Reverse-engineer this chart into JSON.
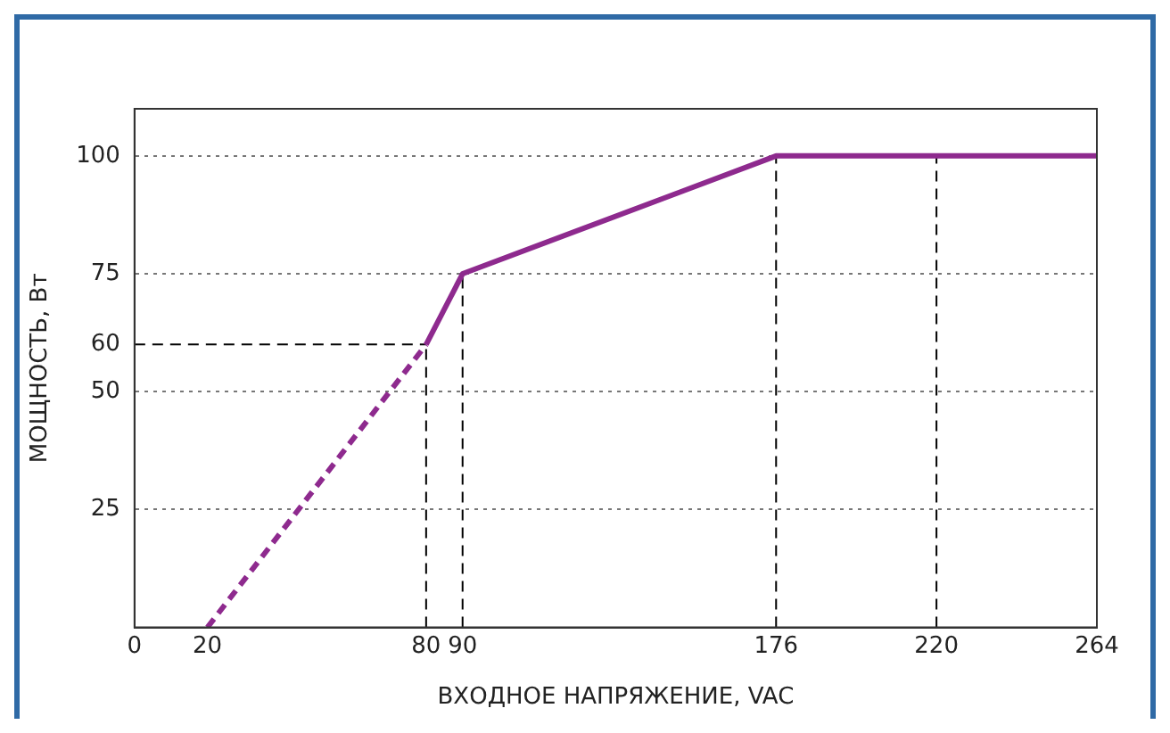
{
  "chart_data": {
    "type": "line",
    "xlabel": "ВХОДНОЕ НАПРЯЖЕНИЕ, VAC",
    "ylabel": "МОЩНОСТЬ, Вт",
    "series": [
      {
        "color": "#8e2a8e",
        "line_style": "dashed",
        "x": [
          20,
          80
        ],
        "values": [
          0,
          60
        ]
      },
      {
        "color": "#8e2a8e",
        "line_style": "solid",
        "x": [
          80,
          90,
          176,
          264
        ],
        "values": [
          60,
          75,
          100,
          100
        ]
      }
    ],
    "xlim": [
      0,
      264
    ],
    "xticks": [
      0,
      20,
      80,
      90,
      176,
      220,
      264
    ],
    "ylim": [
      0,
      110
    ],
    "yticks": [
      25,
      50,
      60,
      75,
      100
    ],
    "grid": "y",
    "marker": "none",
    "legend": false,
    "ref_lines": [
      {
        "axis": "x",
        "value": 80,
        "color": "#000000",
        "line_style": "dashed"
      },
      {
        "axis": "x",
        "value": 90,
        "color": "#000000",
        "line_style": "dashed"
      },
      {
        "axis": "x",
        "value": 176,
        "color": "#000000",
        "line_style": "dashed"
      },
      {
        "axis": "x",
        "value": 220,
        "color": "#000000",
        "line_style": "dashed"
      },
      {
        "axis": "y",
        "value": 60,
        "color": "#000000",
        "line_style": "dashed"
      }
    ]
  }
}
